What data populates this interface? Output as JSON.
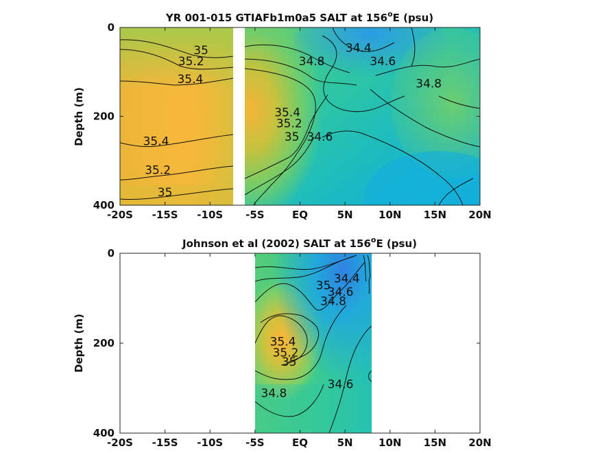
{
  "chart_data": [
    {
      "type": "contour",
      "title": "YR 001-015 GTIAFb1m0a5 SALT at 156",
      "title_sup": "o",
      "title_tail": "E (psu)",
      "ylabel": "Depth (m)",
      "x_ticks": [
        "-20S",
        "-15S",
        "-10S",
        "-5S",
        "EQ",
        "5N",
        "10N",
        "15N",
        "20N"
      ],
      "x_tick_values": [
        -20,
        -15,
        -10,
        -5,
        0,
        5,
        10,
        15,
        20
      ],
      "xlim": [
        -20,
        20
      ],
      "y_ticks": [
        "0",
        "200",
        "400"
      ],
      "y_tick_values": [
        0,
        200,
        400
      ],
      "ylim": [
        0,
        400
      ],
      "y_reversed": true,
      "data_gap_lat": [
        -7.4,
        -6.2
      ],
      "colormap": [
        "#3a7fe0",
        "#1fb6d6",
        "#2ac8a0",
        "#7fcf6a",
        "#c9c43c",
        "#f6b73c"
      ],
      "contour_labels": [
        {
          "text": "35",
          "lat": -11.0,
          "depth": 60
        },
        {
          "text": "35.2",
          "lat": -12.1,
          "depth": 85
        },
        {
          "text": "35.4",
          "lat": -12.2,
          "depth": 125
        },
        {
          "text": "35.4",
          "lat": -16.0,
          "depth": 265
        },
        {
          "text": "35.2",
          "lat": -15.8,
          "depth": 330
        },
        {
          "text": "35",
          "lat": -15.0,
          "depth": 380
        },
        {
          "text": "34.8",
          "lat": 1.3,
          "depth": 85
        },
        {
          "text": "34.4",
          "lat": 6.5,
          "depth": 55
        },
        {
          "text": "34.6",
          "lat": 9.2,
          "depth": 85
        },
        {
          "text": "34.8",
          "lat": 14.3,
          "depth": 135
        },
        {
          "text": "35.4",
          "lat": -1.4,
          "depth": 200
        },
        {
          "text": "35.2",
          "lat": -1.2,
          "depth": 225
        },
        {
          "text": "35",
          "lat": -0.9,
          "depth": 255
        },
        {
          "text": "34.6",
          "lat": 2.2,
          "depth": 255
        }
      ]
    },
    {
      "type": "contour",
      "title": "Johnson et al (2002) SALT at 156",
      "title_sup": "o",
      "title_tail": "E (psu)",
      "ylabel": "Depth (m)",
      "x_ticks": [
        "-20S",
        "-15S",
        "-10S",
        "-5S",
        "EQ",
        "5N",
        "10N",
        "15N",
        "20N"
      ],
      "x_tick_values": [
        -20,
        -15,
        -10,
        -5,
        0,
        5,
        10,
        15,
        20
      ],
      "xlim": [
        -20,
        20
      ],
      "y_ticks": [
        "0",
        "200",
        "400"
      ],
      "y_tick_values": [
        0,
        200,
        400
      ],
      "ylim": [
        0,
        400
      ],
      "y_reversed": true,
      "data_extent_lat": [
        -5,
        8
      ],
      "colormap": [
        "#3a7fe0",
        "#1fb6d6",
        "#2ac8a0",
        "#7fcf6a",
        "#c9c43c",
        "#f6b73c"
      ],
      "contour_labels": [
        {
          "text": "34.4",
          "lat": 5.2,
          "depth": 65
        },
        {
          "text": "34.6",
          "lat": 4.5,
          "depth": 95
        },
        {
          "text": "34.8",
          "lat": 3.7,
          "depth": 115
        },
        {
          "text": "35",
          "lat": 2.6,
          "depth": 80
        },
        {
          "text": "35.4",
          "lat": -1.9,
          "depth": 205
        },
        {
          "text": "35.2",
          "lat": -1.6,
          "depth": 230
        },
        {
          "text": "35",
          "lat": -1.2,
          "depth": 250
        },
        {
          "text": "34.8",
          "lat": -2.9,
          "depth": 320
        },
        {
          "text": "34.6",
          "lat": 4.5,
          "depth": 300
        }
      ]
    }
  ]
}
